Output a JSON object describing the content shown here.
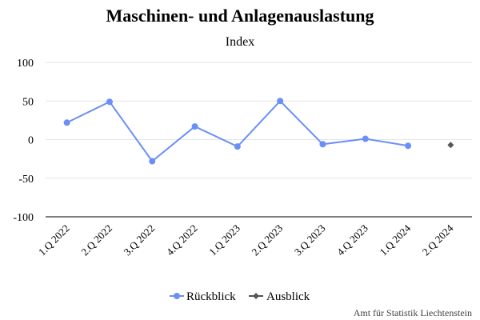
{
  "chart_data": {
    "type": "line",
    "title": "Maschinen- und Anlagenauslastung",
    "subtitle": "Index",
    "categories": [
      "1.Q 2022",
      "2.Q 2022",
      "3.Q 2022",
      "4.Q 2022",
      "1.Q 2023",
      "2.Q 2023",
      "3.Q 2023",
      "4.Q 2023",
      "1.Q 2024",
      "2.Q 2024"
    ],
    "ylim": [
      -100,
      100
    ],
    "yticks": [
      100,
      50,
      0,
      -50,
      -100
    ],
    "grid": true,
    "legend_position": "bottom-center",
    "series": [
      {
        "name": "Rückblick",
        "color": "#6a8ff7",
        "marker": "circle",
        "values": [
          22,
          49,
          -28,
          17,
          -9,
          50,
          -6,
          1,
          -8,
          null
        ]
      },
      {
        "name": "Ausblick",
        "color": "#555555",
        "marker": "diamond",
        "values": [
          null,
          null,
          null,
          null,
          null,
          null,
          null,
          null,
          null,
          -7
        ]
      }
    ]
  },
  "credits": "Amt für Statistik Liechtenstein"
}
